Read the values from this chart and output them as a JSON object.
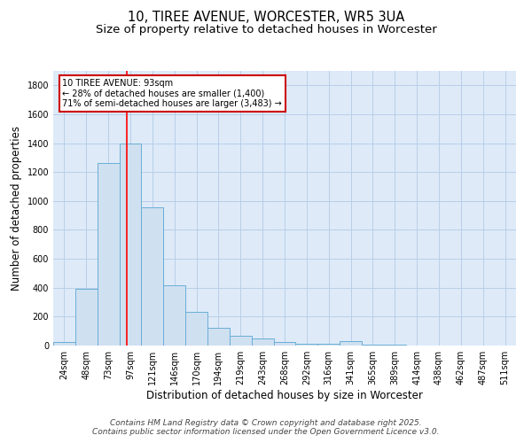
{
  "title1": "10, TIREE AVENUE, WORCESTER, WR5 3UA",
  "title2": "Size of property relative to detached houses in Worcester",
  "xlabel": "Distribution of detached houses by size in Worcester",
  "ylabel": "Number of detached properties",
  "categories": [
    "24sqm",
    "48sqm",
    "73sqm",
    "97sqm",
    "121sqm",
    "146sqm",
    "170sqm",
    "194sqm",
    "219sqm",
    "243sqm",
    "268sqm",
    "292sqm",
    "316sqm",
    "341sqm",
    "365sqm",
    "389sqm",
    "414sqm",
    "438sqm",
    "462sqm",
    "487sqm",
    "511sqm"
  ],
  "values": [
    25,
    390,
    1260,
    1400,
    955,
    415,
    230,
    120,
    65,
    50,
    25,
    10,
    10,
    30,
    8,
    8,
    2,
    1,
    1,
    1,
    1
  ],
  "bar_color": "#cfe0f0",
  "bar_edge_color": "#6aaed6",
  "annotation_line1": "10 TIREE AVENUE: 93sqm",
  "annotation_line2": "← 28% of detached houses are smaller (1,400)",
  "annotation_line3": "71% of semi-detached houses are larger (3,483) →",
  "annotation_box_color": "#ffffff",
  "annotation_box_edge": "#cc0000",
  "ylim": [
    0,
    1900
  ],
  "yticks": [
    0,
    200,
    400,
    600,
    800,
    1000,
    1200,
    1400,
    1600,
    1800
  ],
  "grid_color": "#b8cfe8",
  "bg_color": "#deeaf8",
  "footer1": "Contains HM Land Registry data © Crown copyright and database right 2025.",
  "footer2": "Contains public sector information licensed under the Open Government Licence v3.0.",
  "title_fontsize": 10.5,
  "subtitle_fontsize": 9.5,
  "axis_label_fontsize": 8.5,
  "tick_fontsize": 7,
  "footer_fontsize": 6.5,
  "annot_fontsize": 7
}
